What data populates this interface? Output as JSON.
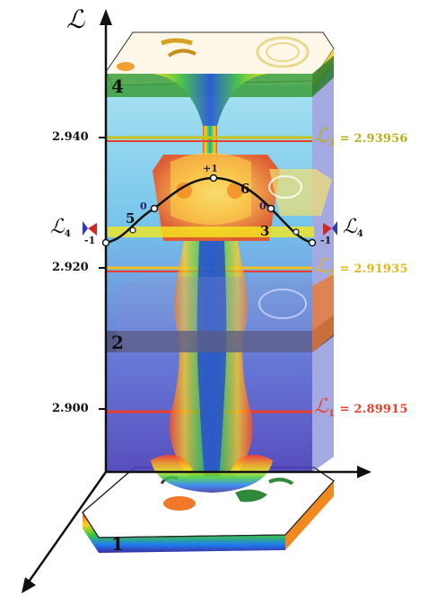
{
  "axis": {
    "vertical_symbol": "ℒ",
    "ticks": [
      "2.940",
      "2.920",
      "2.900"
    ]
  },
  "layers": [
    "4",
    "2",
    "1"
  ],
  "levels": [
    {
      "name": "ℒ",
      "subscript": "3",
      "value": "= 2.93956",
      "color": "#c8c21a"
    },
    {
      "name": "ℒ",
      "subscript": "2",
      "value": "= 2.91935",
      "color": "#e8c61e"
    },
    {
      "name": "ℒ",
      "subscript": "1",
      "value": "= 2.89915",
      "color": "#e8402a"
    }
  ],
  "side_levels": {
    "name": "ℒ",
    "subscript": "4"
  },
  "curve_points": {
    "p3": "3",
    "p5": "5",
    "p6": "6",
    "top": "+1",
    "zero_left": "0",
    "zero_right": "0",
    "minus_left": "-1",
    "minus_right": "-1"
  }
}
